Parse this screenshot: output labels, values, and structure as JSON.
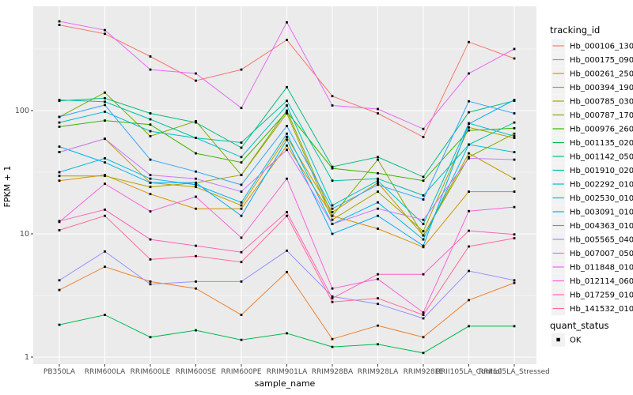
{
  "chart_data": {
    "type": "line",
    "title": "",
    "xlabel": "sample_name",
    "ylabel": "FPKM + 1",
    "y_scale": "log10",
    "y_ticks": [
      1,
      10,
      100
    ],
    "y_minor_ticks": [
      3.162,
      31.62,
      316.2
    ],
    "ylim": [
      0.89,
      680
    ],
    "grid": true,
    "panel_bg": "#EBEBEB",
    "gridline_color": "#FFFFFF",
    "tick_label_color": "#4D4D4D",
    "point_marker": "black-square",
    "point_color": "#000000",
    "legend": {
      "position": "right",
      "series_title": "tracking_id",
      "status_title": "quant_status",
      "status_items": [
        {
          "label": "OK",
          "marker": "black-square"
        }
      ],
      "key_bg": "#F2F2F2"
    },
    "categories": [
      "PB350LA",
      "RRIM600LA",
      "RRIM600LE",
      "RRIM600SE",
      "RRIM600PE",
      "RRIM901LA",
      "RRIM928BA",
      "RRIM928LA",
      "RRIM928LE",
      "RRII105LA_Control",
      "RRII105LA_Stressed"
    ],
    "series": [
      {
        "name": "Hb_000106_130",
        "color": "#F8766D",
        "values": [
          495,
          420,
          275,
          175,
          215,
          375,
          131,
          95,
          61,
          360,
          265
        ]
      },
      {
        "name": "Hb_000175_090",
        "color": "#EA8331",
        "values": [
          3.5,
          5.4,
          4.1,
          3.6,
          2.2,
          4.9,
          1.4,
          1.8,
          1.45,
          2.9,
          4.0
        ]
      },
      {
        "name": "Hb_000261_250",
        "color": "#D89000",
        "values": [
          27,
          30,
          21,
          16,
          16,
          52,
          14,
          11,
          7.8,
          22,
          22
        ]
      },
      {
        "name": "Hb_000394_190",
        "color": "#C09B00",
        "values": [
          46,
          59,
          26,
          24,
          17,
          61,
          15,
          26,
          9.7,
          45,
          28
        ]
      },
      {
        "name": "Hb_000785_030",
        "color": "#A3A500",
        "values": [
          29.5,
          29.5,
          24,
          26,
          30,
          95,
          13,
          22,
          10.5,
          73,
          60
        ]
      },
      {
        "name": "Hb_000787_170",
        "color": "#7CAE00",
        "values": [
          89,
          140,
          62,
          82,
          30,
          100,
          14,
          40,
          9.7,
          42,
          65
        ]
      },
      {
        "name": "Hb_000976_260",
        "color": "#39B600",
        "values": [
          74,
          83,
          77,
          45,
          38,
          98,
          34,
          31,
          27,
          69,
          72
        ]
      },
      {
        "name": "Hb_001135_020",
        "color": "#00BB4E",
        "values": [
          1.83,
          2.2,
          1.45,
          1.65,
          1.38,
          1.56,
          1.21,
          1.27,
          1.08,
          1.78,
          1.78
        ]
      },
      {
        "name": "Hb_001142_050",
        "color": "#00BF7D",
        "values": [
          120,
          126,
          95,
          80,
          50,
          155,
          35,
          42,
          29,
          97,
          120
        ]
      },
      {
        "name": "Hb_001910_020",
        "color": "#00C1A3",
        "values": [
          122,
          118,
          85,
          60,
          55,
          120,
          27,
          28,
          20.5,
          53,
          80
        ]
      },
      {
        "name": "Hb_002292_010",
        "color": "#00BFC4",
        "values": [
          80,
          98,
          68,
          60,
          42,
          110,
          17,
          27,
          12,
          79,
          62
        ]
      },
      {
        "name": "Hb_002530_010",
        "color": "#00BAE0",
        "values": [
          31.6,
          41,
          28,
          25,
          18,
          65,
          12,
          18,
          9,
          53,
          46
        ]
      },
      {
        "name": "Hb_003091_010",
        "color": "#00B0F6",
        "values": [
          51,
          38,
          26,
          26,
          14,
          58,
          10,
          14,
          8,
          78,
          122
        ]
      },
      {
        "name": "Hb_004363_010",
        "color": "#35A2FF",
        "values": [
          89,
          111,
          40,
          32,
          25,
          75,
          16,
          25,
          19,
          119,
          95
        ]
      },
      {
        "name": "Hb_005565_040",
        "color": "#9590FF",
        "values": [
          4.2,
          7.2,
          3.9,
          4.1,
          4.1,
          7.3,
          3.1,
          2.7,
          2.06,
          5.0,
          4.2
        ]
      },
      {
        "name": "Hb_007007_050",
        "color": "#C77CFF",
        "values": [
          46,
          59,
          30,
          28,
          22,
          48,
          12,
          16,
          13,
          41,
          40
        ]
      },
      {
        "name": "Hb_011848_010",
        "color": "#E76BF3",
        "values": [
          530,
          450,
          215,
          200,
          105,
          520,
          110,
          103,
          71,
          200,
          316
        ]
      },
      {
        "name": "Hb_012114_060",
        "color": "#FA62DB",
        "values": [
          12.5,
          25.5,
          15.2,
          20,
          9.3,
          28,
          3.6,
          4.3,
          2.3,
          15.3,
          16.5
        ]
      },
      {
        "name": "Hb_017259_010",
        "color": "#FF62BC",
        "values": [
          12.7,
          15.7,
          9.0,
          8.0,
          7.1,
          15.0,
          3.0,
          4.7,
          4.7,
          10.6,
          9.9
        ]
      },
      {
        "name": "Hb_141532_010",
        "color": "#FF6A98",
        "values": [
          10.7,
          14.0,
          6.2,
          6.6,
          5.9,
          14.0,
          2.8,
          3.0,
          2.2,
          7.9,
          9.2
        ]
      }
    ]
  }
}
